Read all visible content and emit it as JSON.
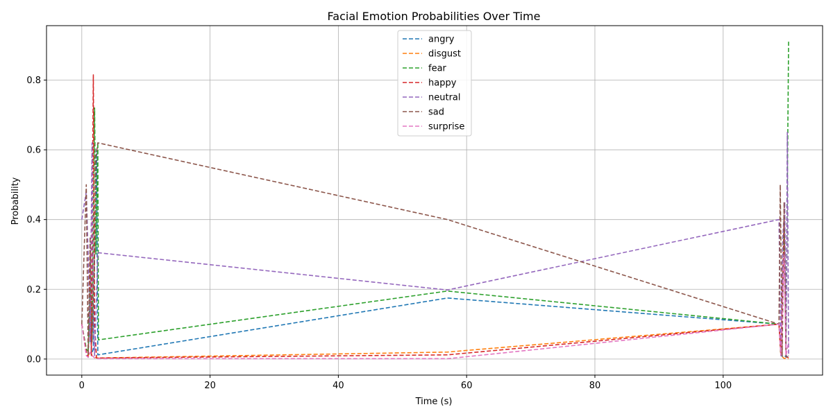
{
  "chart_data": {
    "type": "line",
    "title": "Facial Emotion Probabilities Over Time",
    "xlabel": "Time (s)",
    "ylabel": "Probability",
    "xlim": [
      -5.5,
      115.5
    ],
    "ylim": [
      -0.046,
      0.956
    ],
    "xticks": [
      0,
      20,
      40,
      60,
      80,
      100
    ],
    "yticks": [
      0.0,
      0.2,
      0.4,
      0.6,
      0.8
    ],
    "ytick_labels": [
      "0.0",
      "0.2",
      "0.4",
      "0.6",
      "0.8"
    ],
    "grid": true,
    "line_style": "dashed",
    "legend_position": "top-center",
    "series": [
      {
        "name": "angry",
        "color": "#1f77b4",
        "points": [
          [
            0,
            0.1
          ],
          [
            0.7,
            0.02
          ],
          [
            1.0,
            0.01
          ],
          [
            1.3,
            0.2
          ],
          [
            1.5,
            0.01
          ],
          [
            1.8,
            0.03
          ],
          [
            2.0,
            0.3
          ],
          [
            2.3,
            0.6
          ],
          [
            2.5,
            0.012
          ],
          [
            57,
            0.175
          ],
          [
            108.7,
            0.1
          ],
          [
            109.0,
            0.01
          ],
          [
            109.5,
            0.005
          ],
          [
            109.8,
            0.01
          ],
          [
            110.2,
            0.003
          ]
        ]
      },
      {
        "name": "disgust",
        "color": "#ff7f0e",
        "points": [
          [
            0,
            0.1
          ],
          [
            0.7,
            0.02
          ],
          [
            1.0,
            0.01
          ],
          [
            1.3,
            0.02
          ],
          [
            1.6,
            0.01
          ],
          [
            2.0,
            0.005
          ],
          [
            2.5,
            0.003
          ],
          [
            57,
            0.02
          ],
          [
            108.7,
            0.1
          ],
          [
            109.0,
            0.01
          ],
          [
            109.5,
            0.002
          ],
          [
            110.2,
            0.001
          ]
        ]
      },
      {
        "name": "fear",
        "color": "#2ca02c",
        "points": [
          [
            0,
            0.1
          ],
          [
            0.7,
            0.03
          ],
          [
            1.0,
            0.02
          ],
          [
            1.3,
            0.2
          ],
          [
            1.6,
            0.05
          ],
          [
            2.0,
            0.72
          ],
          [
            2.2,
            0.3
          ],
          [
            2.5,
            0.62
          ],
          [
            2.6,
            0.055
          ],
          [
            57,
            0.195
          ],
          [
            108.7,
            0.1
          ],
          [
            109.0,
            0.01
          ],
          [
            109.5,
            0.4
          ],
          [
            109.8,
            0.05
          ],
          [
            110.2,
            0.91
          ]
        ]
      },
      {
        "name": "happy",
        "color": "#d62728",
        "points": [
          [
            0,
            0.1
          ],
          [
            0.7,
            0.02
          ],
          [
            1.0,
            0.005
          ],
          [
            1.3,
            0.3
          ],
          [
            1.5,
            0.01
          ],
          [
            1.8,
            0.815
          ],
          [
            2.0,
            0.1
          ],
          [
            2.3,
            0.003
          ],
          [
            57,
            0.012
          ],
          [
            108.7,
            0.1
          ],
          [
            109.0,
            0.01
          ],
          [
            109.5,
            0.4
          ],
          [
            109.8,
            0.005
          ],
          [
            110.2,
            0.005
          ]
        ]
      },
      {
        "name": "neutral",
        "color": "#9467bd",
        "points": [
          [
            0,
            0.4
          ],
          [
            0.7,
            0.48
          ],
          [
            1.0,
            0.3
          ],
          [
            1.3,
            0.05
          ],
          [
            1.6,
            0.62
          ],
          [
            1.8,
            0.1
          ],
          [
            2.0,
            0.01
          ],
          [
            2.5,
            0.305
          ],
          [
            57,
            0.198
          ],
          [
            108.7,
            0.4
          ],
          [
            109.0,
            0.01
          ],
          [
            109.3,
            0.35
          ],
          [
            109.6,
            0.45
          ],
          [
            109.8,
            0.02
          ],
          [
            110.0,
            0.65
          ],
          [
            110.2,
            0.01
          ]
        ]
      },
      {
        "name": "sad",
        "color": "#8c564b",
        "points": [
          [
            0,
            0.1
          ],
          [
            0.7,
            0.5
          ],
          [
            1.0,
            0.01
          ],
          [
            1.3,
            0.35
          ],
          [
            1.6,
            0.05
          ],
          [
            2.0,
            0.3
          ],
          [
            2.2,
            0.58
          ],
          [
            2.5,
            0.62
          ],
          [
            57,
            0.4
          ],
          [
            108.7,
            0.1
          ],
          [
            108.9,
            0.5
          ],
          [
            109.2,
            0.01
          ],
          [
            109.5,
            0.45
          ],
          [
            109.8,
            0.005
          ],
          [
            110.2,
            0.01
          ]
        ]
      },
      {
        "name": "surprise",
        "color": "#e377c2",
        "points": [
          [
            0,
            0.1
          ],
          [
            0.7,
            0.01
          ],
          [
            1.0,
            0.005
          ],
          [
            1.3,
            0.02
          ],
          [
            1.6,
            0.01
          ],
          [
            2.0,
            0.003
          ],
          [
            2.5,
            0.001
          ],
          [
            57,
            0.001
          ],
          [
            108.7,
            0.1
          ],
          [
            109.0,
            0.01
          ],
          [
            109.5,
            0.3
          ],
          [
            109.8,
            0.01
          ],
          [
            110.2,
            0.05
          ]
        ]
      }
    ]
  }
}
